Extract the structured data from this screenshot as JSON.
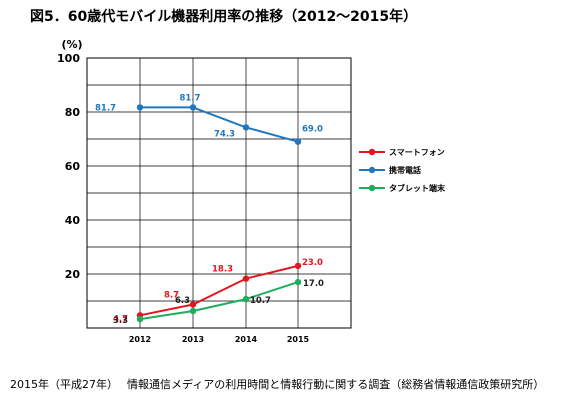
{
  "title": "図5．60歳代モバイル機器利用率の推移（2012～2015年）",
  "source": "2015年（平成27年）　 情報通信メディアの利用時間と情報行動に関する調査（総務省情報通信政策研究所）",
  "chart_data": {
    "type": "line",
    "title": "図5．60歳代モバイル機器利用率の推移（2012～2015年）",
    "unit_label": "(%)",
    "x": [
      "2012",
      "2013",
      "2014",
      "2015"
    ],
    "ylim": [
      0,
      100
    ],
    "yticks": [
      "20",
      "40",
      "60",
      "80",
      "100"
    ],
    "grid": true,
    "legend_position": "right",
    "series": [
      {
        "name": "スマートフォン",
        "color": "#e3161f",
        "values": [
          4.7,
          8.7,
          18.3,
          23.0
        ],
        "labels": [
          "4.7",
          "8.7",
          "18.3",
          "23.0"
        ]
      },
      {
        "name": "携帯電話",
        "color": "#1f78bf",
        "values": [
          81.7,
          81.7,
          74.3,
          69.0
        ],
        "labels": [
          "81.7",
          "81.7",
          "74.3",
          "69.0"
        ]
      },
      {
        "name": "タブレット端末",
        "color": "#1fad5c",
        "values": [
          3.3,
          6.3,
          10.7,
          17.0
        ],
        "labels": [
          "3.3",
          "6.3",
          "10.7",
          "17.0"
        ]
      }
    ]
  }
}
